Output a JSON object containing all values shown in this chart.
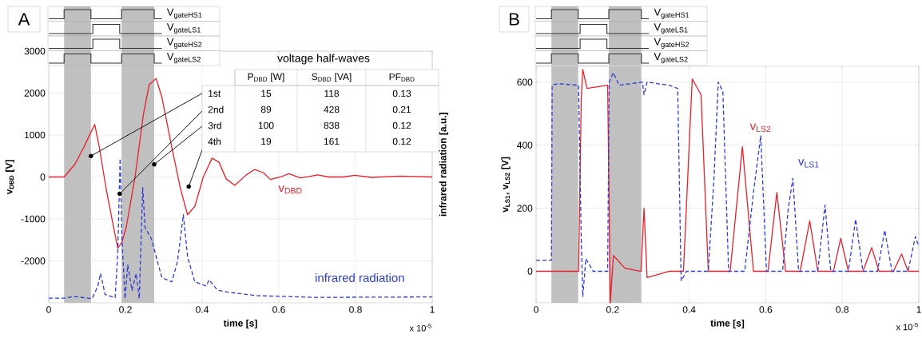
{
  "chart_data": [
    {
      "type": "line",
      "xlabel": "time [s]",
      "ylabel": "v$_{DBD}$ [V]",
      "y2label": "infrared radiation [a.u.]",
      "xlim": [
        0,
        1
      ],
      "ylim": [
        -3000,
        3000
      ],
      "xticks": [
        0,
        0.2,
        0.4,
        0.6,
        0.8,
        1
      ],
      "yticks": [
        -2000,
        -1000,
        0,
        1000,
        2000,
        3000
      ],
      "grid": true,
      "bands": [
        {
          "axis": "x",
          "from": 0.04,
          "to": 0.11,
          "color": "#c0c0c0"
        },
        {
          "axis": "x",
          "from": 0.19,
          "to": 0.275,
          "color": "#c0c0c0"
        }
      ],
      "series": [
        {
          "name": "v$_{DBD}$",
          "color": "#e8202a",
          "line_style": "solid",
          "x": [
            0,
            0.04,
            0.068,
            0.091,
            0.109,
            0.12,
            0.132,
            0.15,
            0.169,
            0.18,
            0.191,
            0.202,
            0.225,
            0.247,
            0.262,
            0.28,
            0.295,
            0.321,
            0.344,
            0.362,
            0.381,
            0.403,
            0.426,
            0.444,
            0.463,
            0.485,
            0.515,
            0.537,
            0.56,
            0.578,
            0.604,
            0.626,
            0.656,
            0.679,
            0.701,
            0.731,
            0.768,
            0.798,
            0.842,
            0.917,
            1.0
          ],
          "values": [
            0,
            0,
            300,
            700,
            1050,
            1250,
            700,
            -300,
            -1200,
            -1700,
            -1550,
            -1200,
            0,
            1500,
            2200,
            2350,
            1900,
            700,
            -300,
            -900,
            -700,
            0,
            450,
            350,
            -50,
            -200,
            50,
            180,
            100,
            -60,
            0,
            80,
            -20,
            10,
            50,
            0,
            0,
            40,
            -10,
            20,
            0
          ]
        },
        {
          "name": "infrared radiation",
          "color": "#2b3bd6",
          "line_style": "dashed",
          "x": [
            0,
            0.04,
            0.068,
            0.113,
            0.128,
            0.135,
            0.147,
            0.173,
            0.18,
            0.186,
            0.191,
            0.199,
            0.206,
            0.217,
            0.228,
            0.236,
            0.245,
            0.251,
            0.269,
            0.28,
            0.295,
            0.321,
            0.336,
            0.351,
            0.362,
            0.381,
            0.411,
            0.418,
            0.44,
            0.47,
            0.545,
            0.693,
            1.0
          ],
          "values": [
            -2890,
            -2890,
            -2850,
            -2900,
            -2600,
            -2300,
            -2800,
            -2880,
            -1800,
            440,
            -1500,
            -2900,
            -2100,
            -2700,
            -2300,
            -2900,
            -250,
            -1200,
            -1500,
            -1900,
            -2400,
            -2500,
            -2000,
            -900,
            -1900,
            -2500,
            -2600,
            -2450,
            -2700,
            -2750,
            -2830,
            -2870,
            -2860
          ]
        }
      ],
      "annotations": [
        "voltage half-waves",
        "P$_{DBD}$ [W]",
        "S$_{DBD}$ [VA]",
        "PF$_{DBD}$",
        {
          "text": "1st",
          "x": 0.11,
          "y": 500
        },
        {
          "text": "2nd",
          "x": 0.185,
          "y": -400
        },
        {
          "text": "3rd",
          "x": 0.275,
          "y": 300
        },
        {
          "text": "4th",
          "x": 0.365,
          "y": -230
        },
        "15",
        "118",
        "0.13",
        "89",
        "428",
        "0.21",
        "100",
        "838",
        "0.12",
        "19",
        "161",
        "0.12",
        "x 10$^{-5}$",
        "V$_{gateHS1}$",
        "V$_{gateLS1}$",
        "V$_{gateHS2}$",
        "V$_{gateLS2}$",
        "A"
      ]
    },
    {
      "type": "line",
      "xlabel": "time [s]",
      "ylabel": "v$_{LS1}$, v$_{LS2}$ [V]",
      "xlim": [
        0,
        1
      ],
      "ylim": [
        -100,
        650
      ],
      "xticks": [
        0,
        0.2,
        0.4,
        0.6,
        0.8,
        1
      ],
      "yticks": [
        0,
        200,
        400,
        600
      ],
      "grid": true,
      "bands": [
        {
          "axis": "x",
          "from": 0.04,
          "to": 0.11,
          "color": "#c0c0c0"
        },
        {
          "axis": "x",
          "from": 0.19,
          "to": 0.275,
          "color": "#c0c0c0"
        }
      ],
      "series": [
        {
          "name": "v$_{LS2}$",
          "color": "#e8202a",
          "line_style": "solid",
          "x": [
            0,
            0.111,
            0.118,
            0.122,
            0.133,
            0.187,
            0.194,
            0.202,
            0.232,
            0.274,
            0.282,
            0.29,
            0.347,
            0.385,
            0.408,
            0.431,
            0.45,
            0.507,
            0.539,
            0.568,
            0.606,
            0.629,
            0.652,
            0.69,
            0.715,
            0.736,
            0.777,
            0.796,
            0.816,
            0.854,
            0.877,
            0.896,
            0.934,
            0.955,
            0.972,
            1.0
          ],
          "values": [
            0,
            0,
            550,
            640,
            580,
            590,
            -100,
            50,
            10,
            0,
            200,
            -20,
            0,
            0,
            610,
            560,
            0,
            0,
            395,
            0,
            0,
            250,
            0,
            0,
            160,
            0,
            0,
            105,
            0,
            0,
            75,
            0,
            0,
            55,
            0,
            0
          ]
        },
        {
          "name": "v$_{LS1}$",
          "color": "#2b3bd6",
          "line_style": "dashed",
          "x": [
            0,
            0.04,
            0.042,
            0.057,
            0.111,
            0.118,
            0.122,
            0.13,
            0.149,
            0.187,
            0.191,
            0.202,
            0.217,
            0.278,
            0.282,
            0.29,
            0.347,
            0.37,
            0.379,
            0.393,
            0.45,
            0.465,
            0.476,
            0.488,
            0.503,
            0.545,
            0.568,
            0.587,
            0.602,
            0.644,
            0.659,
            0.671,
            0.686,
            0.736,
            0.755,
            0.77,
            0.816,
            0.835,
            0.854,
            0.892,
            0.911,
            0.93,
            0.972,
            0.991,
            1.0
          ],
          "values": [
            35,
            35,
            590,
            595,
            590,
            100,
            -80,
            40,
            0,
            0,
            600,
            630,
            590,
            600,
            560,
            600,
            590,
            580,
            -30,
            0,
            0,
            300,
            600,
            570,
            0,
            0,
            250,
            430,
            0,
            0,
            200,
            295,
            0,
            0,
            210,
            0,
            0,
            165,
            0,
            0,
            130,
            0,
            0,
            110,
            80
          ]
        }
      ],
      "annotations": [
        "x 10$^{-5}$",
        "V$_{gateHS1}$",
        "V$_{gateLS1}$",
        "V$_{gateHS2}$",
        "V$_{gateLS2}$",
        "B"
      ]
    }
  ]
}
